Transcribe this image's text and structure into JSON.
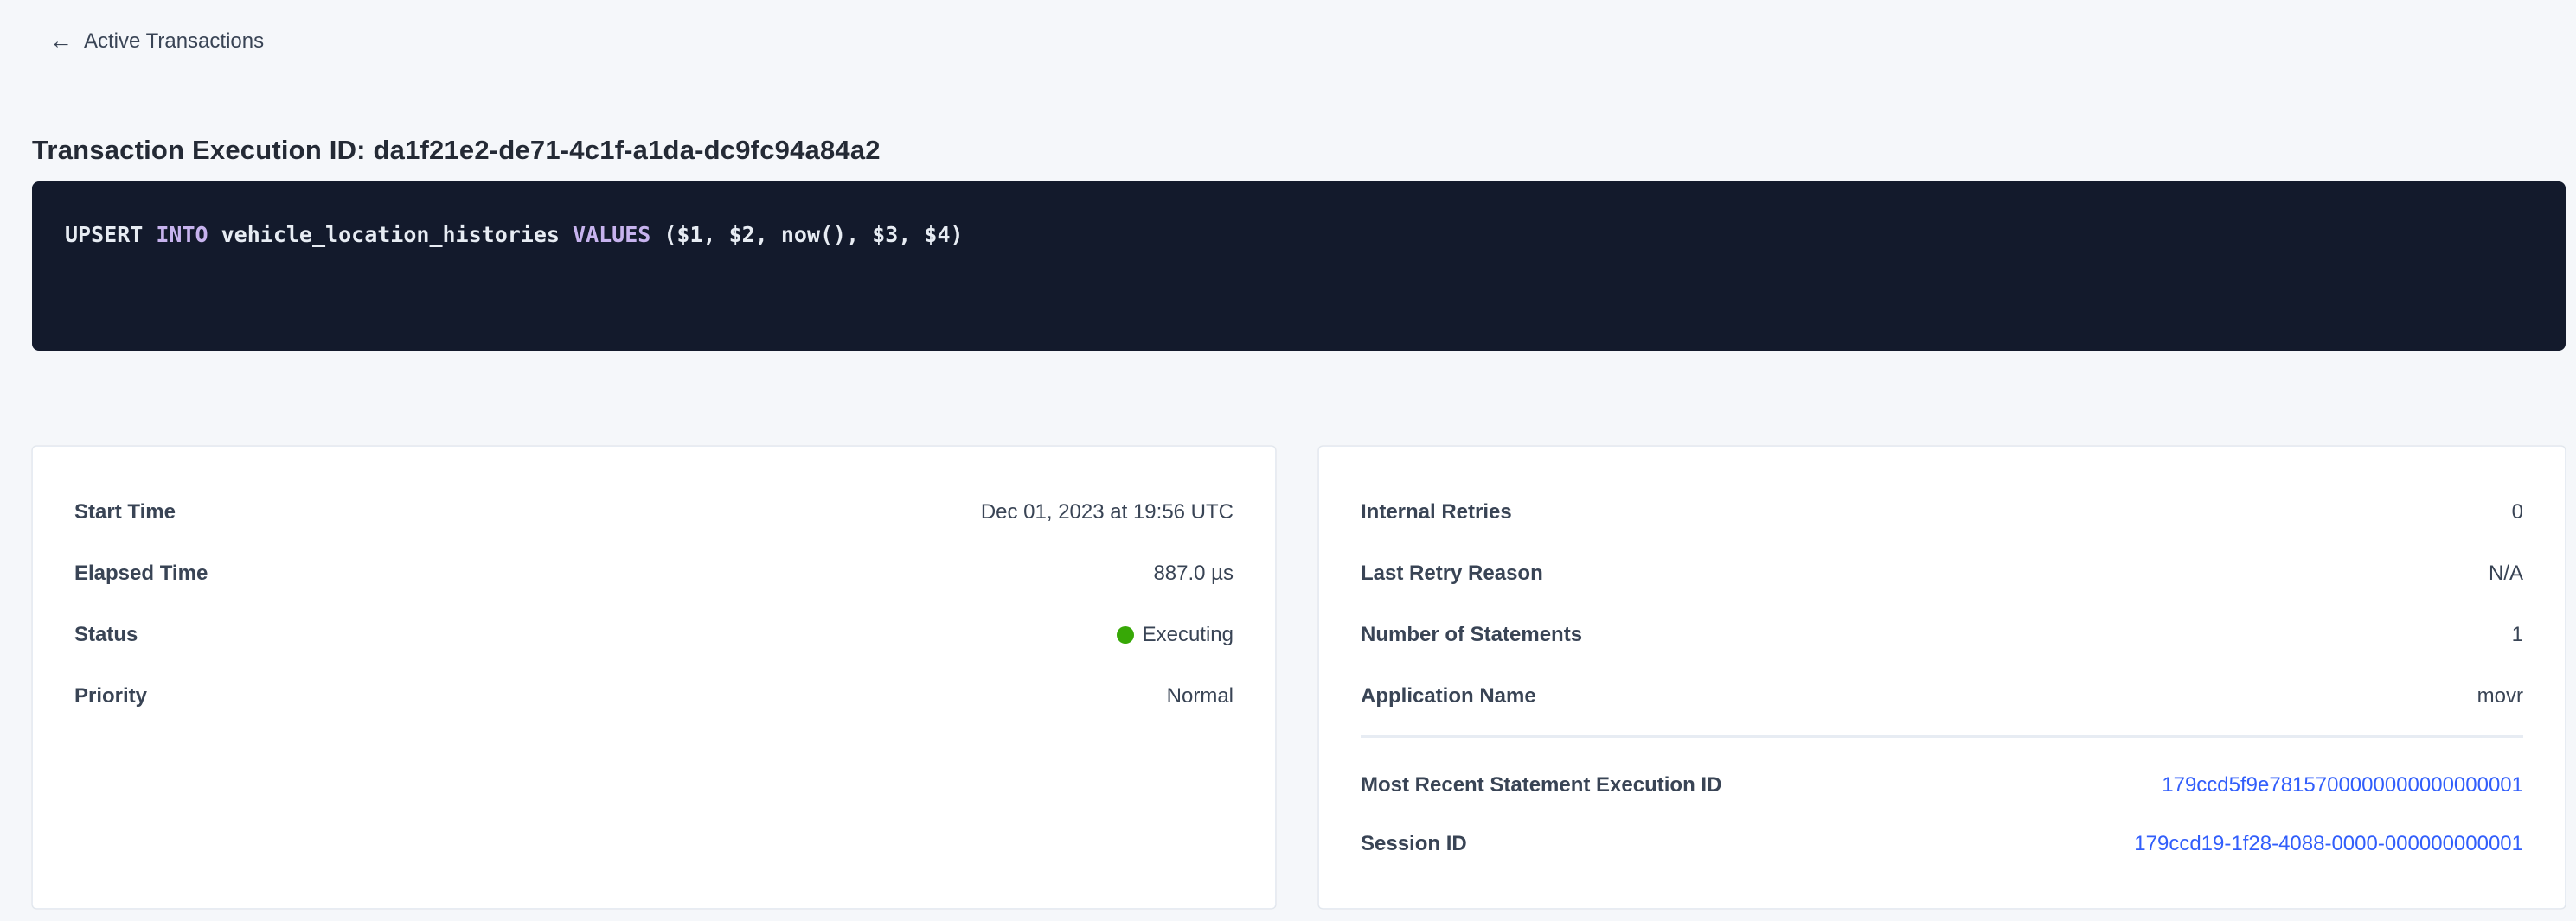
{
  "header": {
    "back_label": "Active Transactions",
    "back_icon": "arrow-left",
    "back_arrow_glyph": "←"
  },
  "title": "Transaction Execution ID: da1f21e2-de71-4c1f-a1da-dc9fc94a84a2",
  "sql": {
    "statement": "UPSERT INTO vehicle_location_histories VALUES ($1, $2, now(), $3, $4)",
    "tokens": [
      {
        "text": "UPSERT ",
        "type": "plain"
      },
      {
        "text": "INTO",
        "type": "keyword"
      },
      {
        "text": " vehicle_location_histories ",
        "type": "plain"
      },
      {
        "text": "VALUES",
        "type": "keyword"
      },
      {
        "text": " ($1, $2, now(), $3, $4)",
        "type": "plain"
      }
    ],
    "colors": {
      "background": "#131a2c",
      "text": "#e7ecf3",
      "keyword": "#c7b3ee"
    }
  },
  "left_card": {
    "rows": [
      {
        "label": "Start Time",
        "value": "Dec 01, 2023 at 19:56 UTC"
      },
      {
        "label": "Elapsed Time",
        "value": "887.0 µs"
      },
      {
        "label": "Status",
        "value": "Executing",
        "dot_color": "#37a806"
      },
      {
        "label": "Priority",
        "value": "Normal"
      }
    ]
  },
  "right_card": {
    "rows": [
      {
        "label": "Internal Retries",
        "value": "0"
      },
      {
        "label": "Last Retry Reason",
        "value": "N/A"
      },
      {
        "label": "Number of Statements",
        "value": "1"
      },
      {
        "label": "Application Name",
        "value": "movr"
      }
    ],
    "link_rows": [
      {
        "label": "Most Recent Statement Execution ID",
        "value": "179ccd5f9e7815700000000000000001"
      },
      {
        "label": "Session ID",
        "value": "179ccd19-1f28-4088-0000-000000000001"
      }
    ],
    "link_color": "#315efb"
  },
  "colors": {
    "page_background": "#f5f7fa",
    "card_background": "#ffffff",
    "card_border": "#e7ecf3",
    "heading_text": "#242a35",
    "body_text": "#394455",
    "status_green": "#37a806",
    "link_blue": "#315efb"
  }
}
